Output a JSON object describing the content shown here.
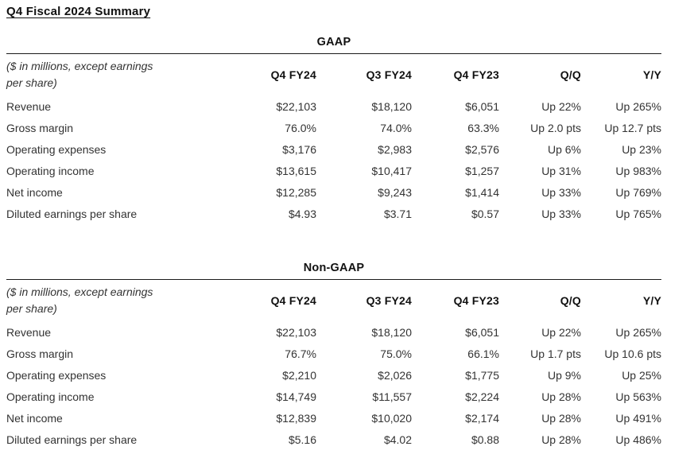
{
  "page_title": "Q4 Fiscal 2024 Summary",
  "tables": [
    {
      "section_title": "GAAP",
      "note_line1": "($ in millions, except earnings",
      "note_line2": "per share)",
      "columns": [
        "Q4 FY24",
        "Q3 FY24",
        "Q4 FY23",
        "Q/Q",
        "Y/Y"
      ],
      "rows": [
        {
          "label": "Revenue",
          "values": [
            "$22,103",
            "$18,120",
            "$6,051",
            "Up 22%",
            "Up 265%"
          ]
        },
        {
          "label": "Gross margin",
          "values": [
            "76.0%",
            "74.0%",
            "63.3%",
            "Up 2.0 pts",
            "Up 12.7 pts"
          ]
        },
        {
          "label": "Operating expenses",
          "values": [
            "$3,176",
            "$2,983",
            "$2,576",
            "Up 6%",
            "Up 23%"
          ]
        },
        {
          "label": "Operating income",
          "values": [
            "$13,615",
            "$10,417",
            "$1,257",
            "Up 31%",
            "Up 983%"
          ]
        },
        {
          "label": "Net income",
          "values": [
            "$12,285",
            "$9,243",
            "$1,414",
            "Up 33%",
            "Up 769%"
          ]
        },
        {
          "label": "Diluted earnings per share",
          "values": [
            "$4.93",
            "$3.71",
            "$0.57",
            "Up 33%",
            "Up 765%"
          ]
        }
      ]
    },
    {
      "section_title": "Non-GAAP",
      "note_line1": "($ in millions, except earnings",
      "note_line2": "per share)",
      "columns": [
        "Q4 FY24",
        "Q3 FY24",
        "Q4 FY23",
        "Q/Q",
        "Y/Y"
      ],
      "rows": [
        {
          "label": "Revenue",
          "values": [
            "$22,103",
            "$18,120",
            "$6,051",
            "Up 22%",
            "Up 265%"
          ]
        },
        {
          "label": "Gross margin",
          "values": [
            "76.7%",
            "75.0%",
            "66.1%",
            "Up 1.7 pts",
            "Up 10.6 pts"
          ]
        },
        {
          "label": "Operating expenses",
          "values": [
            "$2,210",
            "$2,026",
            "$1,775",
            "Up 9%",
            "Up 25%"
          ]
        },
        {
          "label": "Operating income",
          "values": [
            "$14,749",
            "$11,557",
            "$2,224",
            "Up 28%",
            "Up 563%"
          ]
        },
        {
          "label": "Net income",
          "values": [
            "$12,839",
            "$10,020",
            "$2,174",
            "Up 28%",
            "Up 491%"
          ]
        },
        {
          "label": "Diluted earnings per share",
          "values": [
            "$5.16",
            "$4.02",
            "$0.88",
            "Up 28%",
            "Up 486%"
          ]
        }
      ]
    }
  ],
  "colors": {
    "text_body": "#333333",
    "text_heading": "#111111",
    "rule": "#1a1a1a",
    "background": "#ffffff"
  }
}
